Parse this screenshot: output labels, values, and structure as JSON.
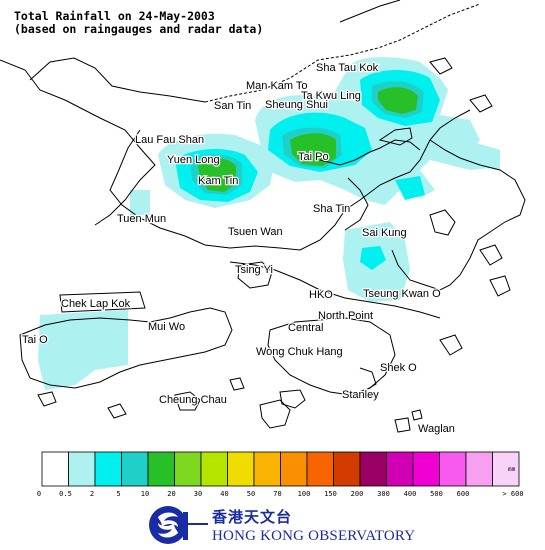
{
  "title": {
    "line1": "Total Rainfall on 24-May-2003",
    "line2": "(based on raingauges and radar data)"
  },
  "places": [
    {
      "id": "sha-tau-kok",
      "name": "Sha Tau Kok"
    },
    {
      "id": "man-kam-to",
      "name": "Man Kam To"
    },
    {
      "id": "ta-kwu-ling",
      "name": "Ta Kwu Ling"
    },
    {
      "id": "san-tin",
      "name": "San Tin"
    },
    {
      "id": "sheung-shui",
      "name": "Sheung Shui"
    },
    {
      "id": "lau-fau-shan",
      "name": "Lau Fau Shan"
    },
    {
      "id": "yuen-long",
      "name": "Yuen Long"
    },
    {
      "id": "tai-po",
      "name": "Tai Po"
    },
    {
      "id": "kam-tin",
      "name": "Kam Tin"
    },
    {
      "id": "tuen-mun",
      "name": "Tuen Mun"
    },
    {
      "id": "sha-tin",
      "name": "Sha Tin"
    },
    {
      "id": "tsuen-wan",
      "name": "Tsuen Wan"
    },
    {
      "id": "sai-kung",
      "name": "Sai Kung"
    },
    {
      "id": "tsing-yi",
      "name": "Tsing Yi"
    },
    {
      "id": "chek-lap-kok",
      "name": "Chek Lap Kok"
    },
    {
      "id": "hko",
      "name": "HKO"
    },
    {
      "id": "tseung-kwan-o",
      "name": "Tseung Kwan O"
    },
    {
      "id": "mui-wo",
      "name": "Mui Wo"
    },
    {
      "id": "north-point",
      "name": "North Point"
    },
    {
      "id": "central",
      "name": "Central"
    },
    {
      "id": "tai-o",
      "name": "Tai O"
    },
    {
      "id": "wong-chuk-hang",
      "name": "Wong Chuk Hang"
    },
    {
      "id": "shek-o",
      "name": "Shek O"
    },
    {
      "id": "cheung-chau",
      "name": "Cheung Chau"
    },
    {
      "id": "stanley",
      "name": "Stanley"
    },
    {
      "id": "waglan",
      "name": "Waglan"
    }
  ],
  "legend": {
    "unit": "mm",
    "colors": [
      "#ffffff",
      "#aef1f1",
      "#00f0f0",
      "#1ed0c8",
      "#28c028",
      "#7ed820",
      "#b4e600",
      "#f0dc00",
      "#f8b400",
      "#f89000",
      "#f86400",
      "#d23c00",
      "#9a0064",
      "#d200b4",
      "#f000d2",
      "#f85af0",
      "#f8a0f0",
      "#f8d2f8"
    ],
    "ticks": [
      "0",
      "0.5",
      "2",
      "5",
      "10",
      "20",
      "30",
      "40",
      "50",
      "70",
      "100",
      "150",
      "200",
      "300",
      "400",
      "500",
      "600",
      "> 600"
    ]
  },
  "logo": {
    "chinese": "香港天文台",
    "english": "HONG KONG OBSERVATORY"
  }
}
